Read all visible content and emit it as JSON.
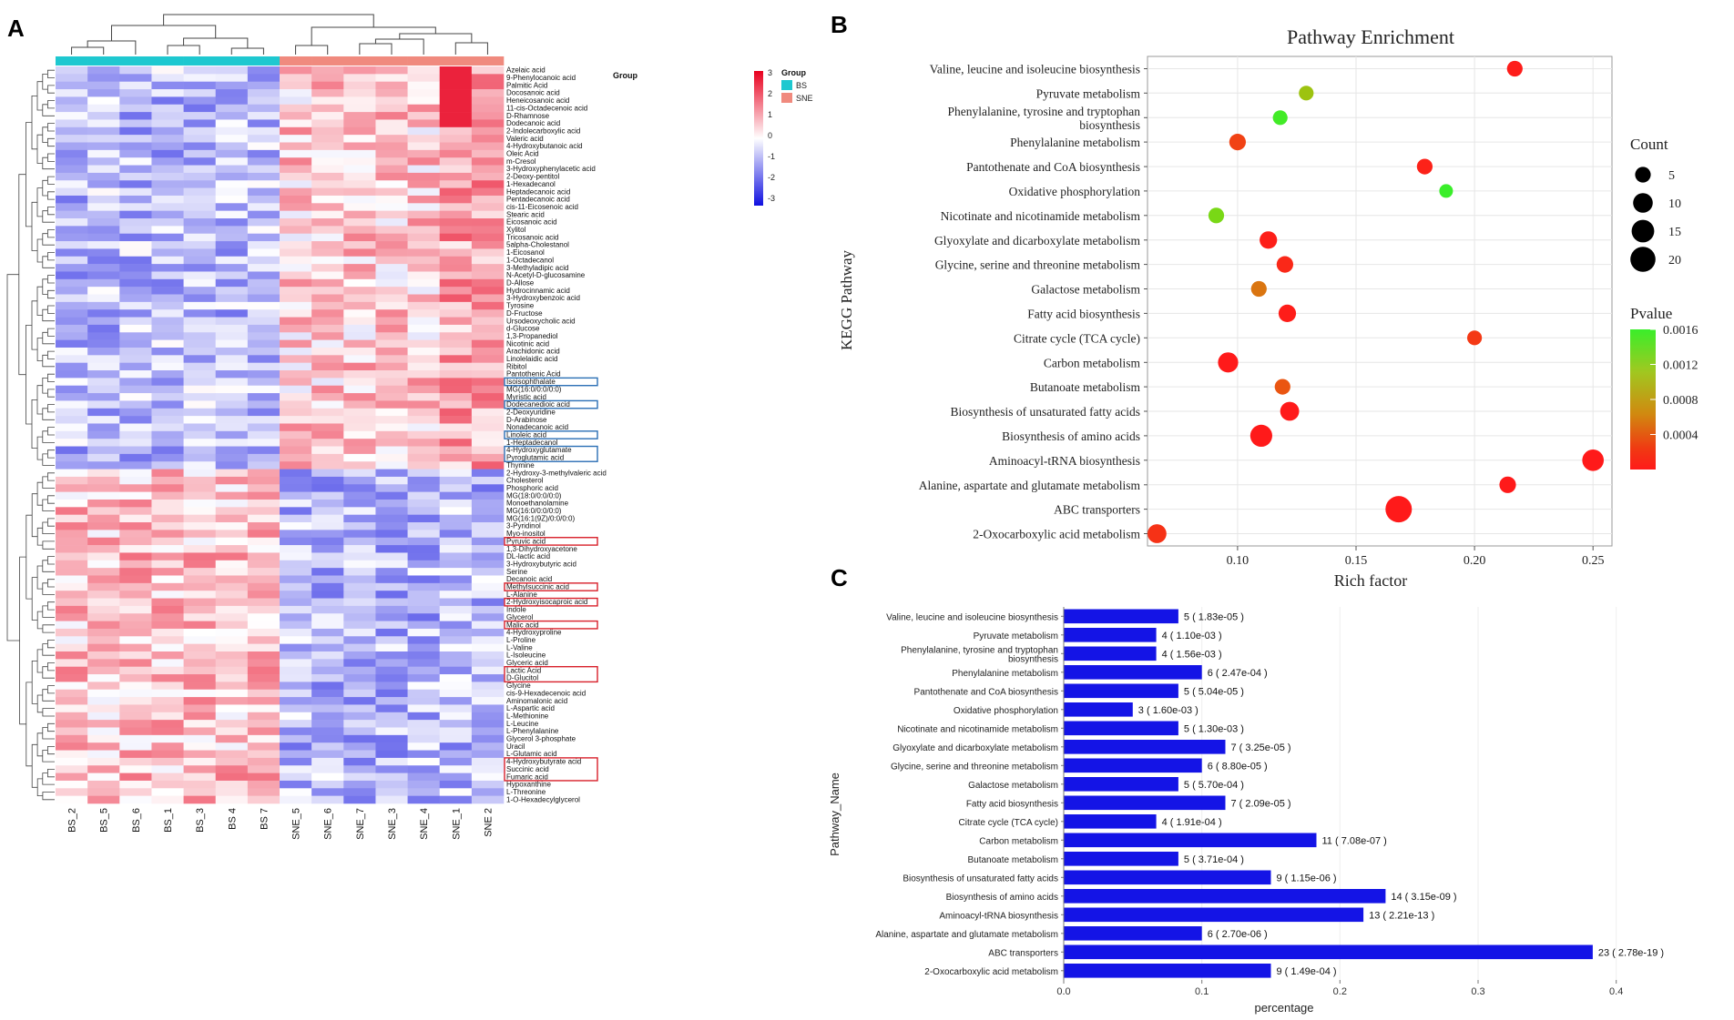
{
  "panels": {
    "a": "A",
    "b": "B",
    "c": "C"
  },
  "chart_data": [
    {
      "type": "heatmap",
      "panel": "A",
      "title": "",
      "legend_title": "Group",
      "groups": [
        {
          "name": "BS",
          "color": "#1ec8d0"
        },
        {
          "name": "SNE",
          "color": "#f08a7e"
        }
      ],
      "scale": {
        "min": -3,
        "max": 3,
        "ticks": [
          "3",
          "2",
          "1",
          "0",
          "-1",
          "-2",
          "-3"
        ],
        "low_color": "#1010e0",
        "mid_color": "#ffffff",
        "high_color": "#e8001e"
      },
      "columns": [
        "BS_2",
        "BS_5",
        "BS_6",
        "BS_1",
        "BS_3",
        "BS 4",
        "BS 7",
        "SNE_5",
        "SNE_6",
        "SNE_7",
        "SNE_3",
        "SNE_4",
        "SNE_1",
        "SNE 2"
      ],
      "column_groups": [
        "BS",
        "BS",
        "BS",
        "BS",
        "BS",
        "BS",
        "BS",
        "SNE",
        "SNE",
        "SNE",
        "SNE",
        "SNE",
        "SNE",
        "SNE"
      ],
      "rows": [
        "Azelaic acid",
        "9-Phenylocanoic acid",
        "Palmitic Acid",
        "Docosanoic acid",
        "Heneicosanoic acid",
        "11-cis-Octadecenoic acid",
        "D-Rhamnose",
        "Dodecanoic acid",
        "2-Indolecarboxylic acid",
        "Valeric acid",
        "4-Hydroxybutanoic acid",
        "Oleic Acid",
        "m-Cresol",
        "3-Hydroxyphenylacetic acid",
        "2-Deoxy-pentitol",
        "1-Hexadecanol",
        "Heptadecanoic acid",
        "Pentadecanoic acid",
        "cis-11-Eicosenoic acid",
        "Stearic acid",
        "Eicosanoic acid",
        "Xylitol",
        "Tricosanoic acid",
        "5alpha-Cholestanol",
        "1-Eicosanol",
        "1-Octadecanol",
        "3-Methyladipic acid",
        "N-Acetyl-D-glucosamine",
        "D-Allose",
        "Hydrocinnamic acid",
        "3-Hydroxybenzoic acid",
        "Tyrosine",
        "D-Fructose",
        "Ursodeoxycholic acid",
        "d-Glucose",
        "1,3-Propanediol",
        "Nicotinic acid",
        "Arachidonic acid",
        "Linolelaidic acid",
        "Ribitol",
        "Pantothenic Acid",
        "Isoisophthalate",
        "MG(16:0/0:0/0:0)",
        "Myristic acid",
        "Dodecanedioic acid",
        "2-Deoxyuridine",
        "D-Arabinose",
        "Nonadecanoic acid",
        "Linoleic acid",
        "1-Heptadecanol",
        "4-Hydroxyglutamate",
        "Pyroglutamic acid",
        "Thymine",
        "2-Hydroxy-3-methylvaleric acid",
        "Cholesterol",
        "Phosphoric acid",
        "MG(18:0/0:0/0:0)",
        "Monoethanolamine",
        "MG(16:0/0:0/0:0)",
        "MG(16:1(9Z)/0:0/0:0)",
        "3-Pyridinol",
        "Myo-inositol",
        "Pyruvic acid",
        "1,3-Dihydroxyacetone",
        "DL-lactic acid",
        "3-Hydroxybutyric acid",
        "Serine",
        "Decanoic acid",
        "Methylsuccinic acid",
        "L-Alanine",
        "2-Hydroxyisocaproic acid",
        "Indole",
        "Glycerol",
        "Malic acid",
        "4-Hydroxyproline",
        "L-Proline",
        "L-Valine",
        "L-Isoleucine",
        "Glyceric acid",
        "Lactic Acid",
        "D-Glucitol",
        "Glycine",
        "cis-9-Hexadecenoic acid",
        "Aminomalonic acid",
        "L-Aspartic acid",
        "L-Methionine",
        "L-Leucine",
        "L-Phenylalanine",
        "Glycerol 3-phosphate",
        "Uracil",
        "L-Glutamic acid",
        "4-Hydroxybutyrate acid",
        "Succinic acid",
        "Fumaric acid",
        "Hypoxanthine",
        "L-Threonine",
        "1-O-Hexadecylglycerol"
      ],
      "highlighted_rows": {
        "blue": [
          "Isoisophthalate",
          "Dodecanedioic acid",
          "Linoleic acid",
          "4-Hydroxyglutamate",
          "Pyroglutamic acid"
        ],
        "red": [
          "Pyruvic acid",
          "Methylsuccinic acid",
          "2-Hydroxyisocaproic acid",
          "Malic acid",
          "Lactic Acid",
          "D-Glucitol",
          "4-Hydroxybutyrate acid",
          "Succinic acid",
          "Fumaric acid"
        ]
      }
    },
    {
      "type": "scatter",
      "panel": "B",
      "title": "Pathway Enrichment",
      "xlabel": "Rich factor",
      "ylabel": "KEGG Pathway",
      "xlim": [
        0.062,
        0.258
      ],
      "xticks": [
        0.1,
        0.15,
        0.2,
        0.25
      ],
      "xtick_labels": [
        "0.10",
        "0.15",
        "0.20",
        "0.25"
      ],
      "size_legend": {
        "title": "Count",
        "values": [
          5,
          10,
          15,
          20
        ]
      },
      "color_legend": {
        "title": "Pvalue",
        "ticks": [
          0.0016,
          0.0012,
          0.0008,
          0.0004
        ],
        "tick_labels": [
          "0.0016",
          "0.0012",
          "0.0008",
          "0.0004"
        ],
        "range": [
          0,
          0.0016
        ]
      },
      "points": [
        {
          "pathway": "Valine, leucine and isoleucine biosynthesis",
          "label_lines": [
            "Valine, leucine and isoleucine biosynthesis"
          ],
          "rich_factor": 0.217,
          "count": 5,
          "pvalue": 1.83e-05
        },
        {
          "pathway": "Pyruvate metabolism",
          "label_lines": [
            "Pyruvate metabolism"
          ],
          "rich_factor": 0.129,
          "count": 4,
          "pvalue": 0.0011
        },
        {
          "pathway": "Phenylalanine, tyrosine and tryptophan biosynthesis",
          "label_lines": [
            "Phenylalanine, tyrosine and tryptophan",
            "biosynthesis"
          ],
          "rich_factor": 0.118,
          "count": 4,
          "pvalue": 0.00156
        },
        {
          "pathway": "Phenylalanine metabolism",
          "label_lines": [
            "Phenylalanine metabolism"
          ],
          "rich_factor": 0.1,
          "count": 6,
          "pvalue": 0.000247
        },
        {
          "pathway": "Pantothenate and CoA biosynthesis",
          "label_lines": [
            "Pantothenate and CoA biosynthesis"
          ],
          "rich_factor": 0.179,
          "count": 5,
          "pvalue": 5.04e-05
        },
        {
          "pathway": "Oxidative phosphorylation",
          "label_lines": [
            "Oxidative phosphorylation"
          ],
          "rich_factor": 0.188,
          "count": 3,
          "pvalue": 0.0016
        },
        {
          "pathway": "Nicotinate and nicotinamide metabolism",
          "label_lines": [
            "Nicotinate and nicotinamide metabolism"
          ],
          "rich_factor": 0.091,
          "count": 5,
          "pvalue": 0.0013
        },
        {
          "pathway": "Glyoxylate and dicarboxylate metabolism",
          "label_lines": [
            "Glyoxylate and dicarboxylate metabolism"
          ],
          "rich_factor": 0.113,
          "count": 7,
          "pvalue": 3.25e-05
        },
        {
          "pathway": "Glycine, serine and threonine metabolism",
          "label_lines": [
            "Glycine, serine and threonine metabolism"
          ],
          "rich_factor": 0.12,
          "count": 6,
          "pvalue": 8.8e-05
        },
        {
          "pathway": "Galactose metabolism",
          "label_lines": [
            "Galactose metabolism"
          ],
          "rich_factor": 0.109,
          "count": 5,
          "pvalue": 0.00057
        },
        {
          "pathway": "Fatty acid biosynthesis",
          "label_lines": [
            "Fatty acid biosynthesis"
          ],
          "rich_factor": 0.121,
          "count": 7,
          "pvalue": 2.09e-05
        },
        {
          "pathway": "Citrate cycle (TCA cycle)",
          "label_lines": [
            "Citrate cycle (TCA cycle)"
          ],
          "rich_factor": 0.2,
          "count": 4,
          "pvalue": 0.000191
        },
        {
          "pathway": "Carbon metabolism",
          "label_lines": [
            "Carbon metabolism"
          ],
          "rich_factor": 0.096,
          "count": 11,
          "pvalue": 7.08e-07
        },
        {
          "pathway": "Butanoate metabolism",
          "label_lines": [
            "Butanoate metabolism"
          ],
          "rich_factor": 0.119,
          "count": 5,
          "pvalue": 0.000371
        },
        {
          "pathway": "Biosynthesis of unsaturated fatty acids",
          "label_lines": [
            "Biosynthesis of unsaturated fatty acids"
          ],
          "rich_factor": 0.122,
          "count": 9,
          "pvalue": 1.15e-06
        },
        {
          "pathway": "Biosynthesis of amino acids",
          "label_lines": [
            "Biosynthesis of amino acids"
          ],
          "rich_factor": 0.11,
          "count": 14,
          "pvalue": 3.15e-09
        },
        {
          "pathway": "Aminoacyl-tRNA biosynthesis",
          "label_lines": [
            "Aminoacyl-tRNA biosynthesis"
          ],
          "rich_factor": 0.25,
          "count": 13,
          "pvalue": 2.21e-13
        },
        {
          "pathway": "Alanine, aspartate and glutamate metabolism",
          "label_lines": [
            "Alanine, aspartate and glutamate metabolism"
          ],
          "rich_factor": 0.214,
          "count": 6,
          "pvalue": 2.7e-06
        },
        {
          "pathway": "ABC transporters",
          "label_lines": [
            "ABC transporters"
          ],
          "rich_factor": 0.168,
          "count": 23,
          "pvalue": 2.78e-19
        },
        {
          "pathway": "2-Oxocarboxylic acid metabolism",
          "label_lines": [
            "2-Oxocarboxylic acid metabolism"
          ],
          "rich_factor": 0.066,
          "count": 9,
          "pvalue": 0.000149
        }
      ]
    },
    {
      "type": "bar",
      "panel": "C",
      "orientation": "horizontal",
      "xlabel": "percentage",
      "ylabel": "Pathway_Name",
      "xlim": [
        0.0,
        0.48
      ],
      "xticks": [
        0.0,
        0.1,
        0.2,
        0.3,
        0.4
      ],
      "xtick_labels": [
        "0.0",
        "0.1",
        "0.2",
        "0.3",
        "0.4"
      ],
      "bar_color": "#1414e6",
      "categories": [
        {
          "label_lines": [
            "Valine, leucine and isoleucine biosynthesis"
          ],
          "value": 0.083,
          "annotation": "5 ( 1.83e-05 )"
        },
        {
          "label_lines": [
            "Pyruvate metabolism"
          ],
          "value": 0.067,
          "annotation": "4 ( 1.10e-03 )"
        },
        {
          "label_lines": [
            "Phenylalanine, tyrosine and tryptophan",
            "biosynthesis"
          ],
          "value": 0.067,
          "annotation": "4 ( 1.56e-03 )"
        },
        {
          "label_lines": [
            "Phenylalanine metabolism"
          ],
          "value": 0.1,
          "annotation": "6 ( 2.47e-04 )"
        },
        {
          "label_lines": [
            "Pantothenate and CoA biosynthesis"
          ],
          "value": 0.083,
          "annotation": "5 ( 5.04e-05 )"
        },
        {
          "label_lines": [
            "Oxidative phosphorylation"
          ],
          "value": 0.05,
          "annotation": "3 ( 1.60e-03 )"
        },
        {
          "label_lines": [
            "Nicotinate and nicotinamide metabolism"
          ],
          "value": 0.083,
          "annotation": "5 ( 1.30e-03 )"
        },
        {
          "label_lines": [
            "Glyoxylate and dicarboxylate metabolism"
          ],
          "value": 0.117,
          "annotation": "7 ( 3.25e-05 )"
        },
        {
          "label_lines": [
            "Glycine, serine and threonine metabolism"
          ],
          "value": 0.1,
          "annotation": "6 ( 8.80e-05 )"
        },
        {
          "label_lines": [
            "Galactose metabolism"
          ],
          "value": 0.083,
          "annotation": "5 ( 5.70e-04 )"
        },
        {
          "label_lines": [
            "Fatty acid biosynthesis"
          ],
          "value": 0.117,
          "annotation": "7 ( 2.09e-05 )"
        },
        {
          "label_lines": [
            "Citrate cycle (TCA cycle)"
          ],
          "value": 0.067,
          "annotation": "4 ( 1.91e-04 )"
        },
        {
          "label_lines": [
            "Carbon metabolism"
          ],
          "value": 0.183,
          "annotation": "11 ( 7.08e-07 )"
        },
        {
          "label_lines": [
            "Butanoate metabolism"
          ],
          "value": 0.083,
          "annotation": "5 ( 3.71e-04 )"
        },
        {
          "label_lines": [
            "Biosynthesis of unsaturated fatty acids"
          ],
          "value": 0.15,
          "annotation": "9 ( 1.15e-06 )"
        },
        {
          "label_lines": [
            "Biosynthesis of amino acids"
          ],
          "value": 0.233,
          "annotation": "14 ( 3.15e-09 )"
        },
        {
          "label_lines": [
            "Aminoacyl-tRNA biosynthesis"
          ],
          "value": 0.217,
          "annotation": "13 ( 2.21e-13 )"
        },
        {
          "label_lines": [
            "Alanine, aspartate and glutamate metabolism"
          ],
          "value": 0.1,
          "annotation": "6 ( 2.70e-06 )"
        },
        {
          "label_lines": [
            "ABC transporters"
          ],
          "value": 0.383,
          "annotation": "23 ( 2.78e-19 )"
        },
        {
          "label_lines": [
            "2-Oxocarboxylic acid metabolism"
          ],
          "value": 0.15,
          "annotation": "9 ( 1.49e-04 )"
        }
      ]
    }
  ]
}
